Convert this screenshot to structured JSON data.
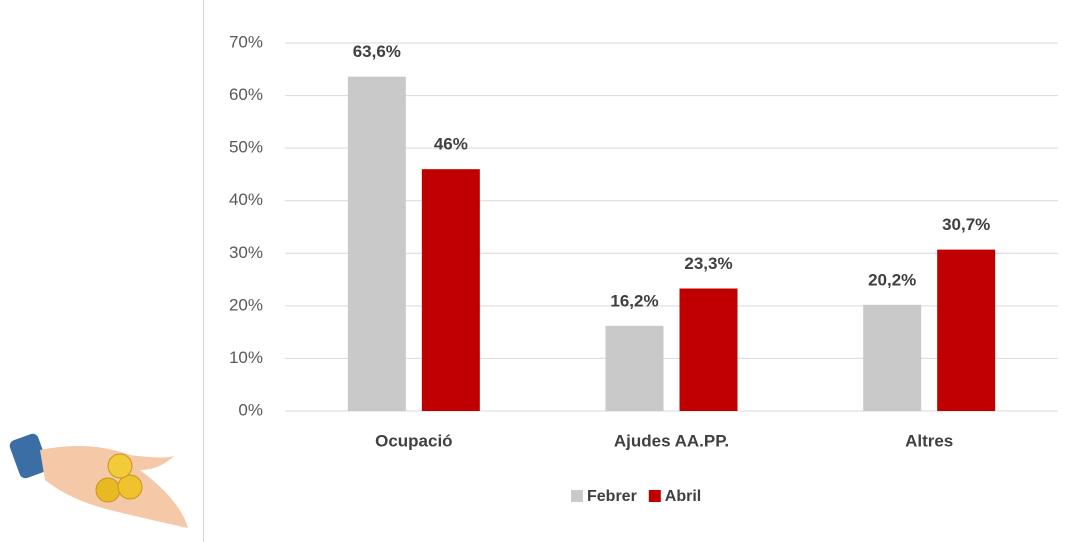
{
  "chart_data": {
    "type": "bar",
    "categories": [
      "Ocupació",
      "Ajudes AA.PP.",
      "Altres"
    ],
    "series": [
      {
        "name": "Febrer",
        "color": "#c9c9c9",
        "values": [
          63.6,
          16.2,
          20.2
        ],
        "value_labels": [
          "63,6%",
          "16,2%",
          "20,2%"
        ]
      },
      {
        "name": "Abril",
        "color": "#c00000",
        "values": [
          46,
          23.3,
          30.7
        ],
        "value_labels": [
          "46%",
          "23,3%",
          "30,7%"
        ]
      }
    ],
    "ylim": [
      0,
      70
    ],
    "yticks": [
      {
        "value": 0,
        "label": "0%"
      },
      {
        "value": 10,
        "label": "10%"
      },
      {
        "value": 20,
        "label": "20%"
      },
      {
        "value": 30,
        "label": "30%"
      },
      {
        "value": 40,
        "label": "40%"
      },
      {
        "value": 50,
        "label": "50%"
      },
      {
        "value": 60,
        "label": "60%"
      },
      {
        "value": 70,
        "label": "70%"
      }
    ],
    "grid": true,
    "legend": "bottom"
  }
}
